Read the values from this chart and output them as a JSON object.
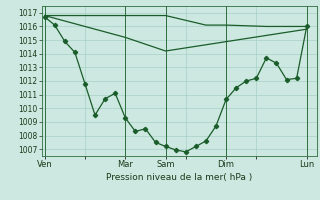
{
  "bg_color": "#cce8e0",
  "grid_color": "#a8d0c8",
  "line_color": "#1a5c2a",
  "title": "Pression niveau de la mer( hPa )",
  "ylim": [
    1006.5,
    1017.5
  ],
  "yticks": [
    1007,
    1008,
    1009,
    1010,
    1011,
    1012,
    1013,
    1014,
    1015,
    1016,
    1017
  ],
  "xtick_labels": [
    "Ven",
    "",
    "Mar",
    "Sam",
    "",
    "Dim",
    "",
    "Lun"
  ],
  "xtick_positions": [
    0,
    4,
    8,
    12,
    14,
    18,
    21,
    26
  ],
  "xlim": [
    -0.3,
    27
  ],
  "line1_x": [
    0,
    4,
    8,
    12,
    16,
    18,
    22,
    26
  ],
  "line1_y": [
    1016.8,
    1016.8,
    1016.8,
    1016.8,
    1016.1,
    1016.1,
    1016.0,
    1016.0
  ],
  "line2_x": [
    0,
    8,
    12,
    26
  ],
  "line2_y": [
    1016.8,
    1015.2,
    1014.2,
    1015.8
  ],
  "line3_x": [
    0,
    1,
    2,
    3,
    4,
    5,
    6,
    7,
    8,
    9,
    10,
    11,
    12,
    13,
    14,
    15,
    16,
    17,
    18,
    19,
    20,
    21,
    22,
    23,
    24,
    25,
    26
  ],
  "line3_y": [
    1016.7,
    1016.1,
    1014.9,
    1014.1,
    1011.8,
    1009.5,
    1010.7,
    1011.1,
    1009.3,
    1008.3,
    1008.5,
    1007.5,
    1007.2,
    1006.95,
    1006.8,
    1007.2,
    1007.6,
    1008.7,
    1010.65,
    1011.5,
    1012.0,
    1012.2,
    1013.7,
    1013.3,
    1012.1,
    1012.2,
    1016.0
  ],
  "vline_x": [
    0,
    8,
    12,
    18,
    26
  ],
  "vline_color": "#2d6e3e",
  "marker_x": [
    0,
    1,
    2,
    3,
    4,
    5,
    6,
    7,
    8,
    9,
    10,
    11,
    12,
    13,
    14,
    15,
    16,
    17,
    18,
    19,
    20,
    21,
    22,
    23,
    24,
    25,
    26
  ],
  "marker_y": [
    1016.7,
    1016.1,
    1014.9,
    1014.1,
    1011.8,
    1009.5,
    1010.7,
    1011.1,
    1009.3,
    1008.3,
    1008.5,
    1007.5,
    1007.2,
    1006.95,
    1006.8,
    1007.2,
    1007.6,
    1008.7,
    1010.65,
    1011.5,
    1012.0,
    1012.2,
    1013.7,
    1013.3,
    1012.1,
    1012.2,
    1016.0
  ]
}
